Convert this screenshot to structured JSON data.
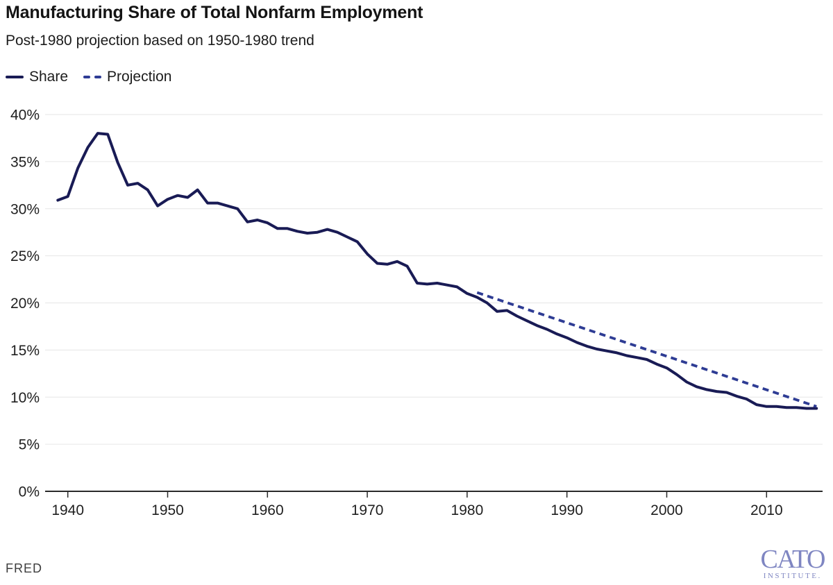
{
  "chart_data": {
    "type": "line",
    "title": "Manufacturing Share of Total Nonfarm Employment",
    "subtitle": "Post-1980 projection based on 1950-1980 trend",
    "x": [
      1939,
      1940,
      1941,
      1942,
      1943,
      1944,
      1945,
      1946,
      1947,
      1948,
      1949,
      1950,
      1951,
      1952,
      1953,
      1954,
      1955,
      1956,
      1957,
      1958,
      1959,
      1960,
      1961,
      1962,
      1963,
      1964,
      1965,
      1966,
      1967,
      1968,
      1969,
      1970,
      1971,
      1972,
      1973,
      1974,
      1975,
      1976,
      1977,
      1978,
      1979,
      1980,
      1981,
      1982,
      1983,
      1984,
      1985,
      1986,
      1987,
      1988,
      1989,
      1990,
      1991,
      1992,
      1993,
      1994,
      1995,
      1996,
      1997,
      1998,
      1999,
      2000,
      2001,
      2002,
      2003,
      2004,
      2005,
      2006,
      2007,
      2008,
      2009,
      2010,
      2011,
      2012,
      2013,
      2014,
      2015
    ],
    "series": [
      {
        "name": "Share",
        "style": "solid",
        "color": "#191b55",
        "values": [
          30.9,
          31.3,
          34.3,
          36.5,
          38.0,
          37.9,
          34.9,
          32.5,
          32.7,
          32.0,
          30.3,
          31.0,
          31.4,
          31.2,
          32.0,
          30.6,
          30.6,
          30.3,
          30.0,
          28.6,
          28.8,
          28.5,
          27.9,
          27.9,
          27.6,
          27.4,
          27.5,
          27.8,
          27.5,
          27.0,
          26.5,
          25.2,
          24.2,
          24.1,
          24.4,
          23.9,
          22.1,
          22.0,
          22.1,
          21.9,
          21.7,
          21.0,
          20.6,
          20.0,
          19.1,
          19.2,
          18.6,
          18.1,
          17.6,
          17.2,
          16.7,
          16.3,
          15.8,
          15.4,
          15.1,
          14.9,
          14.7,
          14.4,
          14.2,
          14.0,
          13.5,
          13.1,
          12.4,
          11.6,
          11.1,
          10.8,
          10.6,
          10.5,
          10.1,
          9.8,
          9.2,
          9.0,
          9.0,
          8.9,
          8.9,
          8.8,
          8.8
        ]
      },
      {
        "name": "Projection",
        "style": "dashed",
        "color": "#2e3c94",
        "x": [
          1981,
          2015
        ],
        "values": [
          21.1,
          9.0
        ]
      }
    ],
    "xlabel": "",
    "ylabel": "",
    "xticks": [
      1940,
      1950,
      1960,
      1970,
      1980,
      1990,
      2000,
      2010
    ],
    "yticks": [
      0,
      5,
      10,
      15,
      20,
      25,
      30,
      35,
      40
    ],
    "ytick_suffix": "%",
    "ylim": [
      0,
      40
    ],
    "xlim": [
      1939,
      2016
    ],
    "grid": "horizontal",
    "gridline_color": "#e6e6e6",
    "axis_color": "#2a2a2a",
    "tick_label_color": "#1f1f1f",
    "legend_position": "top-left"
  },
  "footer": {
    "source_label": "FRED"
  },
  "branding": {
    "name": "CATO",
    "subname": "INSTITUTE.",
    "color": "#7f86c2"
  }
}
